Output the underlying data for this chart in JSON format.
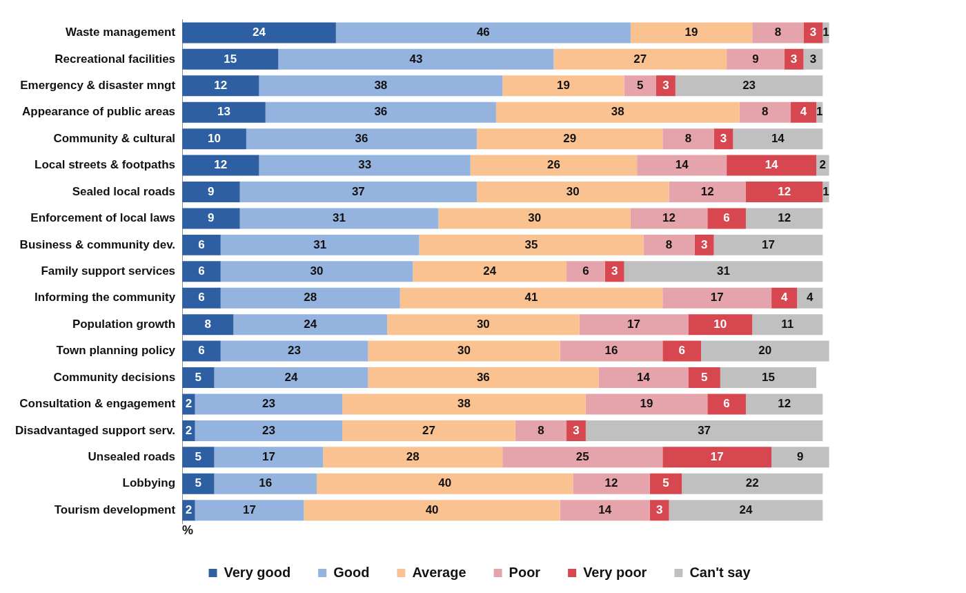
{
  "chart_data": {
    "type": "bar",
    "orientation": "horizontal",
    "stacked": true,
    "data_labels": true,
    "legend": "bottom",
    "grid": false,
    "xlabel": "%",
    "categories": [
      "Waste management",
      "Recreational facilities",
      "Emergency & disaster mngt",
      "Appearance of public areas",
      "Community & cultural",
      "Local streets & footpaths",
      "Sealed local roads",
      "Enforcement of local laws",
      "Business & community dev.",
      "Family support services",
      "Informing the community",
      "Population growth",
      "Town planning policy",
      "Community decisions",
      "Consultation & engagement",
      "Disadvantaged support serv.",
      "Unsealed roads",
      "Lobbying",
      "Tourism development"
    ],
    "series": [
      {
        "name": "Very good",
        "color": "#2e5fa3",
        "values": [
          24,
          15,
          12,
          13,
          10,
          12,
          9,
          9,
          6,
          6,
          6,
          8,
          6,
          5,
          2,
          2,
          5,
          5,
          2
        ]
      },
      {
        "name": "Good",
        "color": "#94b3de",
        "values": [
          46,
          43,
          38,
          36,
          36,
          33,
          37,
          31,
          31,
          30,
          28,
          24,
          23,
          24,
          23,
          23,
          17,
          16,
          17
        ]
      },
      {
        "name": "Average",
        "color": "#fac291",
        "values": [
          19,
          27,
          19,
          38,
          29,
          26,
          30,
          30,
          35,
          24,
          41,
          30,
          30,
          36,
          38,
          27,
          28,
          40,
          40
        ]
      },
      {
        "name": "Poor",
        "color": "#e5a3ab",
        "values": [
          8,
          9,
          5,
          8,
          8,
          14,
          12,
          12,
          8,
          6,
          17,
          17,
          16,
          14,
          19,
          8,
          25,
          12,
          14
        ]
      },
      {
        "name": "Very poor",
        "color": "#d7474f",
        "values": [
          3,
          3,
          3,
          4,
          3,
          14,
          12,
          6,
          3,
          3,
          4,
          10,
          6,
          5,
          6,
          3,
          17,
          5,
          3
        ]
      },
      {
        "name": "Can't say",
        "color": "#c0c0c0",
        "values": [
          1,
          3,
          23,
          1,
          14,
          2,
          1,
          12,
          17,
          31,
          4,
          11,
          20,
          15,
          12,
          37,
          9,
          22,
          24
        ]
      }
    ]
  }
}
